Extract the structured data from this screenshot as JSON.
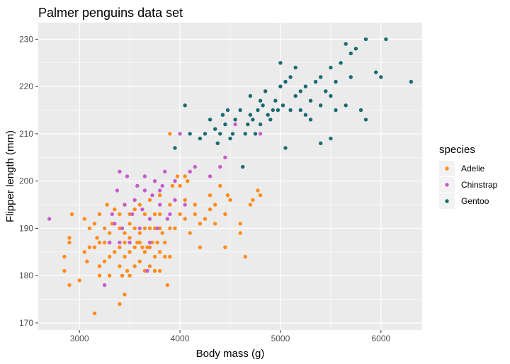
{
  "chart_data": {
    "type": "scatter",
    "title": "Palmer penguins data set",
    "xlabel": "Body mass (g)",
    "ylabel": "Flipper length (mm)",
    "xlim": [
      2590,
      6410
    ],
    "ylim": [
      168.5,
      233.5
    ],
    "x_ticks": [
      3000,
      4000,
      5000,
      6000
    ],
    "y_ticks": [
      170,
      180,
      190,
      200,
      210,
      220,
      230
    ],
    "grid": true,
    "legend_title": "species",
    "legend_position": "right",
    "series": [
      {
        "name": "Adelie",
        "color": "#FF8C1A",
        "points": [
          [
            2850,
            181
          ],
          [
            2850,
            184
          ],
          [
            2900,
            178
          ],
          [
            2900,
            187
          ],
          [
            2900,
            188
          ],
          [
            2925,
            193
          ],
          [
            3000,
            179
          ],
          [
            3050,
            185
          ],
          [
            3050,
            192
          ],
          [
            3075,
            183
          ],
          [
            3100,
            186
          ],
          [
            3100,
            190
          ],
          [
            3150,
            172
          ],
          [
            3150,
            186
          ],
          [
            3150,
            191
          ],
          [
            3175,
            188
          ],
          [
            3200,
            180
          ],
          [
            3200,
            182
          ],
          [
            3200,
            187
          ],
          [
            3200,
            193
          ],
          [
            3250,
            183
          ],
          [
            3250,
            187
          ],
          [
            3250,
            190
          ],
          [
            3275,
            195
          ],
          [
            3300,
            180
          ],
          [
            3300,
            184
          ],
          [
            3300,
            187
          ],
          [
            3300,
            189
          ],
          [
            3325,
            191
          ],
          [
            3350,
            194
          ],
          [
            3350,
            185
          ],
          [
            3400,
            174
          ],
          [
            3400,
            182
          ],
          [
            3400,
            186
          ],
          [
            3400,
            190
          ],
          [
            3400,
            193
          ],
          [
            3425,
            180
          ],
          [
            3450,
            176
          ],
          [
            3450,
            184
          ],
          [
            3450,
            187
          ],
          [
            3450,
            189
          ],
          [
            3450,
            195
          ],
          [
            3475,
            181
          ],
          [
            3500,
            180
          ],
          [
            3500,
            185
          ],
          [
            3500,
            188
          ],
          [
            3500,
            191
          ],
          [
            3500,
            193
          ],
          [
            3550,
            182
          ],
          [
            3550,
            186
          ],
          [
            3550,
            190
          ],
          [
            3550,
            194
          ],
          [
            3575,
            187
          ],
          [
            3600,
            183
          ],
          [
            3600,
            187
          ],
          [
            3600,
            189
          ],
          [
            3600,
            195
          ],
          [
            3625,
            186
          ],
          [
            3650,
            181
          ],
          [
            3650,
            185
          ],
          [
            3650,
            190
          ],
          [
            3650,
            193
          ],
          [
            3675,
            186
          ],
          [
            3700,
            182
          ],
          [
            3700,
            186
          ],
          [
            3700,
            190
          ],
          [
            3700,
            196
          ],
          [
            3725,
            187
          ],
          [
            3750,
            181
          ],
          [
            3750,
            184
          ],
          [
            3750,
            190
          ],
          [
            3750,
            193
          ],
          [
            3775,
            187
          ],
          [
            3800,
            181
          ],
          [
            3800,
            185
          ],
          [
            3800,
            190
          ],
          [
            3800,
            193
          ],
          [
            3800,
            197
          ],
          [
            3825,
            189
          ],
          [
            3850,
            184
          ],
          [
            3850,
            187
          ],
          [
            3875,
            178
          ],
          [
            3900,
            184
          ],
          [
            3900,
            190
          ],
          [
            3900,
            195
          ],
          [
            3925,
            199
          ],
          [
            3950,
            190
          ],
          [
            3950,
            196
          ],
          [
            3975,
            201
          ],
          [
            4000,
            193
          ],
          [
            4000,
            199
          ],
          [
            4050,
            192
          ],
          [
            4050,
            196
          ],
          [
            4050,
            201
          ],
          [
            4075,
            200
          ],
          [
            4100,
            189
          ],
          [
            4150,
            193
          ],
          [
            4150,
            195
          ],
          [
            4200,
            186
          ],
          [
            4200,
            191
          ],
          [
            4250,
            192
          ],
          [
            4300,
            194
          ],
          [
            4300,
            197
          ],
          [
            4350,
            191
          ],
          [
            4350,
            195
          ],
          [
            4400,
            199
          ],
          [
            4450,
            186
          ],
          [
            4450,
            193
          ],
          [
            4475,
            197
          ],
          [
            4500,
            196
          ],
          [
            4600,
            189
          ],
          [
            4600,
            191
          ],
          [
            4650,
            184
          ],
          [
            4700,
            195
          ],
          [
            4725,
            196
          ],
          [
            4775,
            198
          ],
          [
            4800,
            197
          ],
          [
            3900,
            210
          ]
        ]
      },
      {
        "name": "Chinstrap",
        "color": "#C65CCD",
        "points": [
          [
            2700,
            192
          ],
          [
            3250,
            178
          ],
          [
            3300,
            187
          ],
          [
            3325,
            193
          ],
          [
            3350,
            191
          ],
          [
            3375,
            198
          ],
          [
            3400,
            187
          ],
          [
            3400,
            202
          ],
          [
            3425,
            190
          ],
          [
            3450,
            195
          ],
          [
            3475,
            201
          ],
          [
            3500,
            187
          ],
          [
            3525,
            193
          ],
          [
            3550,
            196
          ],
          [
            3575,
            199
          ],
          [
            3600,
            190
          ],
          [
            3625,
            194
          ],
          [
            3650,
            198
          ],
          [
            3650,
            201
          ],
          [
            3675,
            181
          ],
          [
            3700,
            187
          ],
          [
            3700,
            192
          ],
          [
            3725,
            197
          ],
          [
            3750,
            200
          ],
          [
            3775,
            190
          ],
          [
            3800,
            195
          ],
          [
            3800,
            198
          ],
          [
            3825,
            199
          ],
          [
            3850,
            202
          ],
          [
            3875,
            192
          ],
          [
            3900,
            193
          ],
          [
            3950,
            196
          ],
          [
            3950,
            200
          ],
          [
            4000,
            210
          ],
          [
            4050,
            195
          ],
          [
            4100,
            202
          ],
          [
            4150,
            203
          ],
          [
            4300,
            201
          ],
          [
            4400,
            203
          ],
          [
            4450,
            205
          ],
          [
            4550,
            212
          ],
          [
            4800,
            210
          ]
        ]
      },
      {
        "name": "Gentoo",
        "color": "#1A6B73",
        "points": [
          [
            3950,
            207
          ],
          [
            4050,
            216
          ],
          [
            4100,
            210
          ],
          [
            4200,
            209
          ],
          [
            4250,
            210
          ],
          [
            4300,
            213
          ],
          [
            4350,
            211
          ],
          [
            4375,
            208
          ],
          [
            4400,
            210
          ],
          [
            4425,
            214
          ],
          [
            4450,
            212
          ],
          [
            4475,
            215
          ],
          [
            4500,
            209
          ],
          [
            4525,
            210
          ],
          [
            4550,
            213
          ],
          [
            4600,
            215
          ],
          [
            4625,
            203
          ],
          [
            4650,
            210
          ],
          [
            4675,
            212
          ],
          [
            4700,
            214
          ],
          [
            4700,
            218
          ],
          [
            4725,
            213
          ],
          [
            4750,
            210
          ],
          [
            4775,
            215
          ],
          [
            4800,
            212
          ],
          [
            4800,
            217
          ],
          [
            4825,
            216
          ],
          [
            4850,
            219
          ],
          [
            4875,
            214
          ],
          [
            4900,
            213
          ],
          [
            4925,
            215
          ],
          [
            4950,
            217
          ],
          [
            4975,
            215
          ],
          [
            5000,
            220
          ],
          [
            5000,
            225
          ],
          [
            5025,
            216
          ],
          [
            5050,
            207
          ],
          [
            5050,
            221
          ],
          [
            5100,
            215
          ],
          [
            5100,
            222
          ],
          [
            5150,
            218
          ],
          [
            5150,
            224
          ],
          [
            5200,
            215
          ],
          [
            5200,
            219
          ],
          [
            5250,
            214
          ],
          [
            5250,
            220
          ],
          [
            5300,
            213
          ],
          [
            5300,
            217
          ],
          [
            5350,
            221
          ],
          [
            5400,
            216
          ],
          [
            5400,
            208
          ],
          [
            5400,
            222
          ],
          [
            5450,
            219
          ],
          [
            5500,
            209
          ],
          [
            5500,
            218
          ],
          [
            5500,
            224
          ],
          [
            5550,
            215
          ],
          [
            5550,
            221
          ],
          [
            5600,
            225
          ],
          [
            5650,
            216
          ],
          [
            5650,
            229
          ],
          [
            5700,
            222
          ],
          [
            5700,
            227
          ],
          [
            5750,
            228
          ],
          [
            5800,
            215
          ],
          [
            5850,
            213
          ],
          [
            5850,
            230
          ],
          [
            5950,
            223
          ],
          [
            6000,
            222
          ],
          [
            6050,
            230
          ],
          [
            6300,
            221
          ]
        ]
      }
    ]
  }
}
